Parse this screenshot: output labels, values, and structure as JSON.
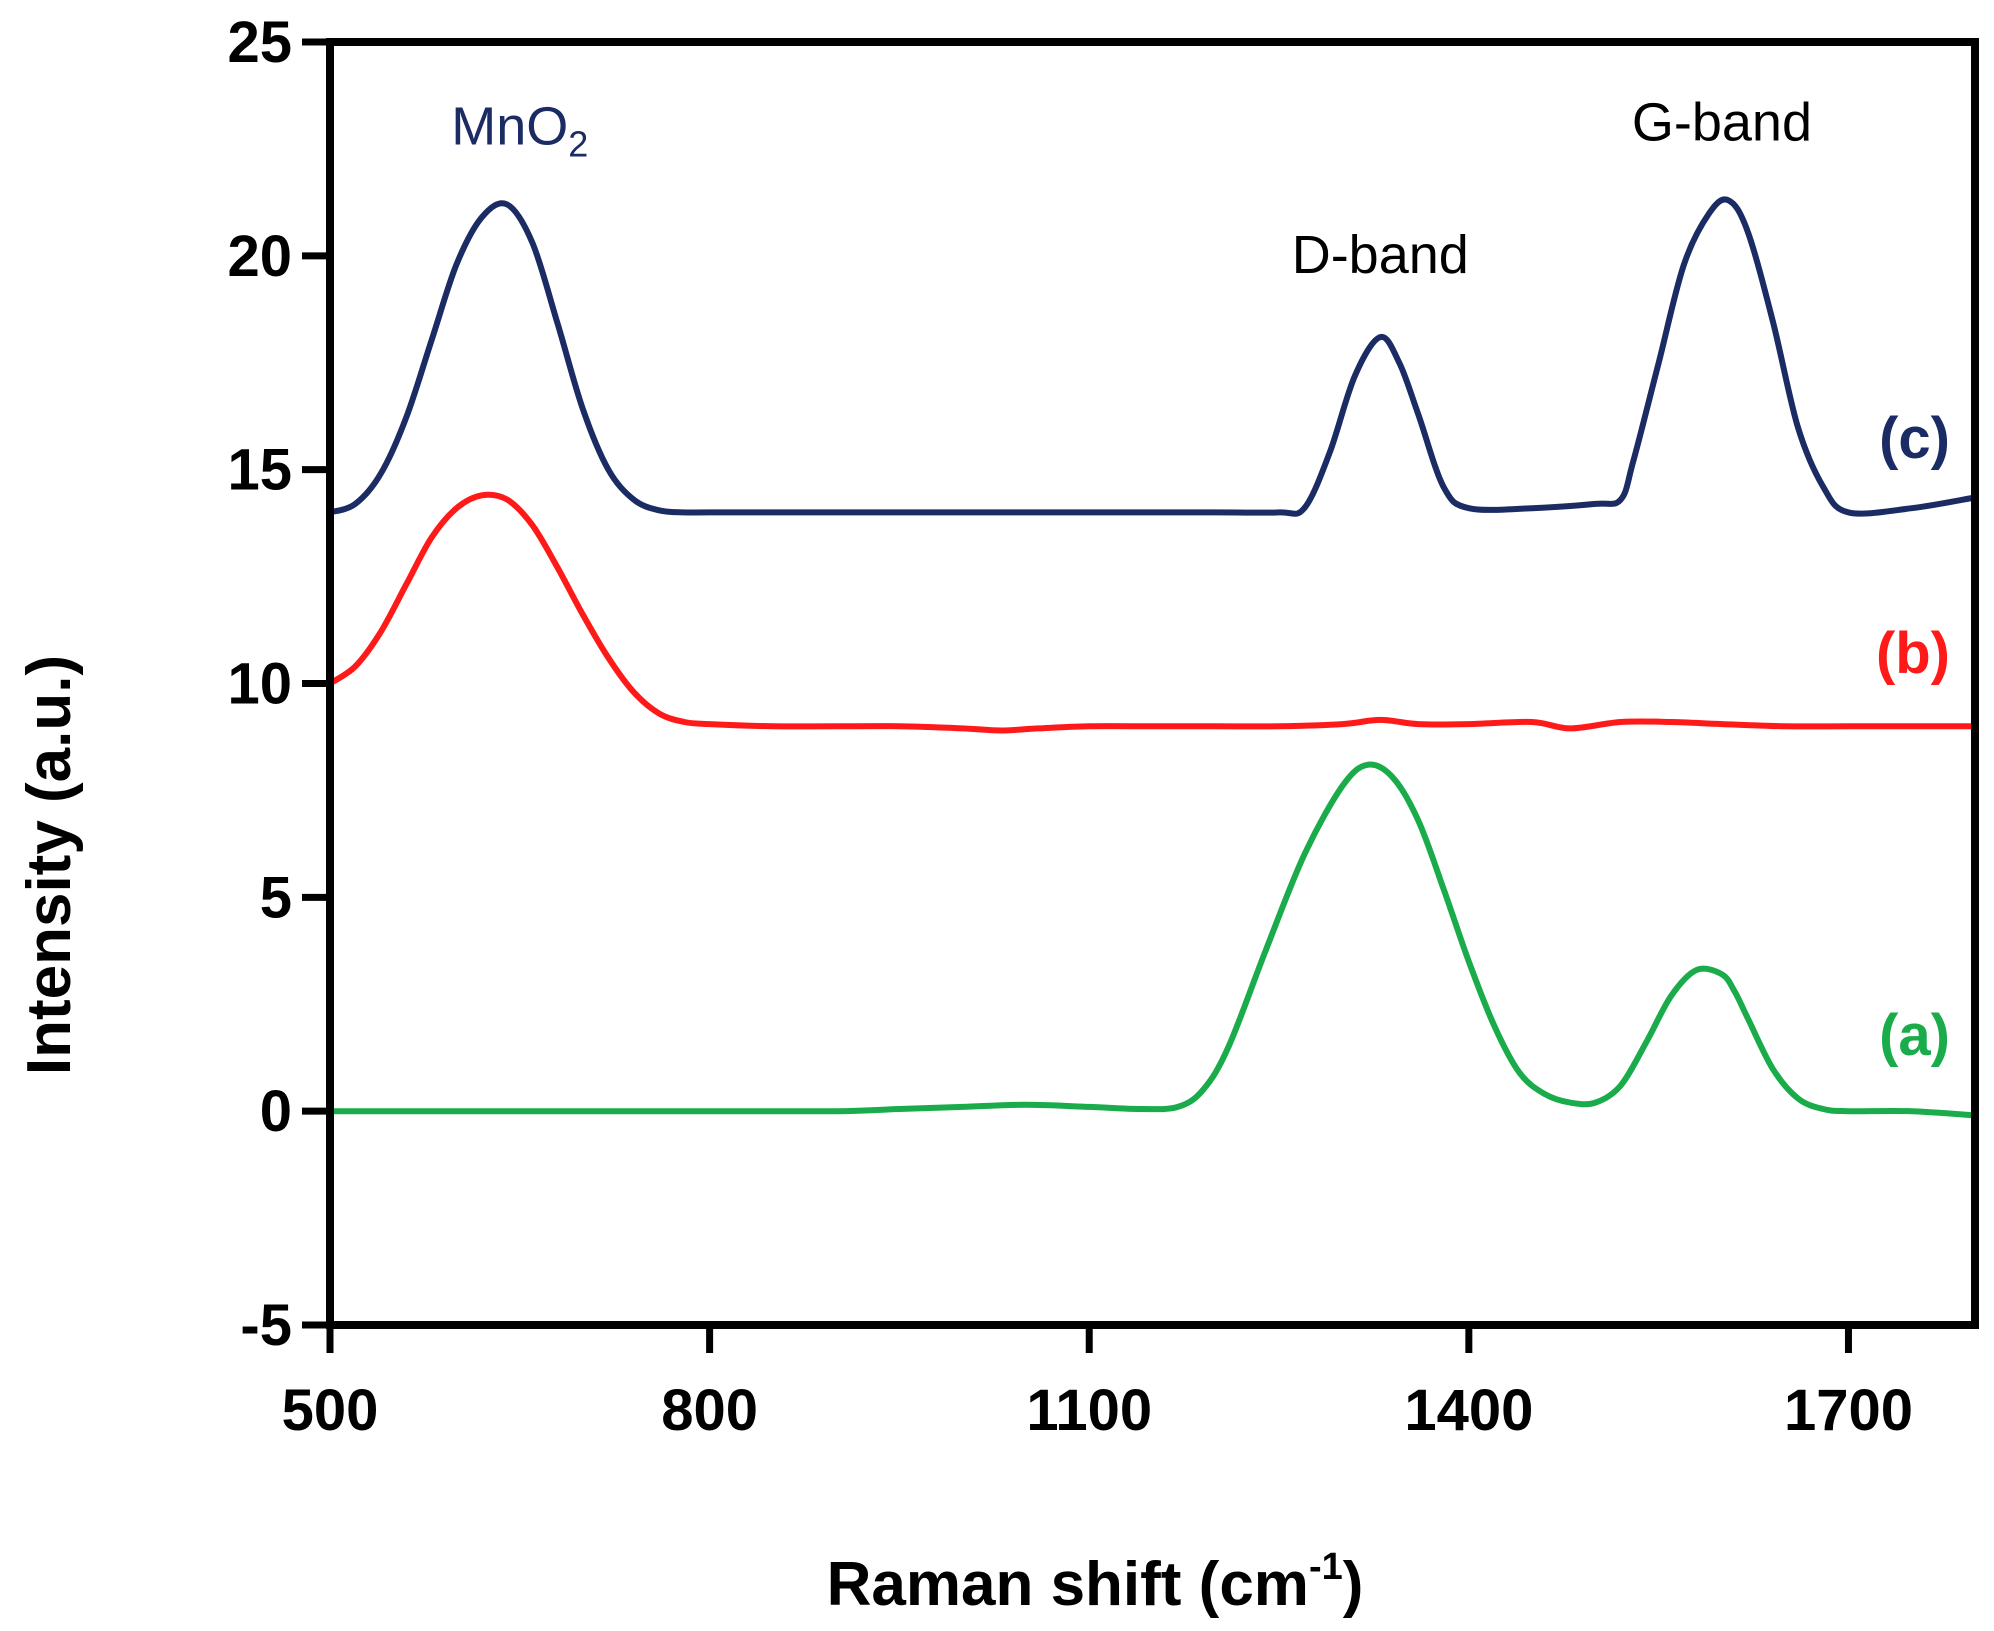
{
  "chart_data": {
    "type": "line",
    "title": "",
    "xlabel": "Raman shift (cm",
    "xlabel_sup": "-1",
    "xlabel_end": ")",
    "ylabel": "Intensity (a.u.)",
    "xlim": [
      500,
      1800
    ],
    "ylim": [
      -5,
      25
    ],
    "xticks": [
      500,
      800,
      1100,
      1400,
      1700
    ],
    "yticks": [
      -5,
      0,
      5,
      10,
      15,
      20,
      25
    ],
    "grid": false,
    "series": [
      {
        "name": "(a)",
        "color": "#1aab4b",
        "x": [
          500,
          600,
          700,
          800,
          900,
          950,
          1000,
          1050,
          1100,
          1140,
          1170,
          1190,
          1210,
          1240,
          1270,
          1300,
          1320,
          1340,
          1360,
          1380,
          1400,
          1420,
          1440,
          1460,
          1480,
          1500,
          1520,
          1540,
          1560,
          1580,
          1600,
          1610,
          1620,
          1640,
          1660,
          1680,
          1700,
          1750,
          1800
        ],
        "values": [
          0,
          0,
          0,
          0,
          0,
          0.05,
          0.1,
          0.15,
          0.1,
          0.05,
          0.1,
          0.5,
          1.5,
          3.8,
          6.0,
          7.6,
          8.1,
          7.8,
          6.8,
          5.2,
          3.5,
          2.0,
          0.9,
          0.4,
          0.2,
          0.2,
          0.6,
          1.6,
          2.7,
          3.3,
          3.2,
          2.8,
          2.2,
          1.0,
          0.3,
          0.05,
          0,
          0,
          -0.1
        ]
      },
      {
        "name": "(b)",
        "color": "#ff1a1a",
        "x": [
          500,
          520,
          540,
          560,
          580,
          600,
          620,
          640,
          660,
          680,
          700,
          720,
          740,
          760,
          780,
          800,
          850,
          900,
          950,
          1000,
          1030,
          1060,
          1100,
          1150,
          1200,
          1250,
          1300,
          1330,
          1360,
          1400,
          1450,
          1480,
          1520,
          1560,
          1600,
          1650,
          1700,
          1750,
          1800
        ],
        "values": [
          10,
          10.4,
          11.2,
          12.3,
          13.4,
          14.1,
          14.4,
          14.3,
          13.7,
          12.7,
          11.6,
          10.6,
          9.8,
          9.3,
          9.1,
          9.05,
          9.0,
          9.0,
          9.0,
          8.95,
          8.9,
          8.95,
          9.0,
          9.0,
          9.0,
          9.0,
          9.05,
          9.15,
          9.05,
          9.05,
          9.1,
          8.95,
          9.1,
          9.1,
          9.05,
          9.0,
          9.0,
          9.0,
          9.0
        ]
      },
      {
        "name": "(c)",
        "color": "#1b2b63",
        "x": [
          500,
          520,
          540,
          560,
          580,
          600,
          620,
          640,
          660,
          680,
          700,
          720,
          740,
          760,
          780,
          800,
          900,
          1000,
          1100,
          1200,
          1250,
          1270,
          1290,
          1310,
          1330,
          1345,
          1360,
          1380,
          1400,
          1450,
          1500,
          1520,
          1530,
          1550,
          1570,
          1590,
          1605,
          1620,
          1640,
          1660,
          1680,
          1700,
          1750,
          1800
        ],
        "values": [
          14,
          14.2,
          14.9,
          16.2,
          18.0,
          19.8,
          20.9,
          21.2,
          20.3,
          18.4,
          16.4,
          15.0,
          14.3,
          14.05,
          14.0,
          14.0,
          14.0,
          14.0,
          14.0,
          14.0,
          14.0,
          14.1,
          15.4,
          17.2,
          18.1,
          17.5,
          16.3,
          14.6,
          14.1,
          14.1,
          14.2,
          14.3,
          15.2,
          17.5,
          19.8,
          21.0,
          21.3,
          20.6,
          18.5,
          16.0,
          14.6,
          14.0,
          14.1,
          14.35
        ]
      }
    ],
    "annotations": [
      {
        "label": "MnO",
        "sub": "2",
        "x": 650,
        "y": 22.6,
        "color": "#1b2b63"
      },
      {
        "label": "D-band",
        "x": 1330,
        "y": 19.6,
        "color": "#000000"
      },
      {
        "label": "G-band",
        "x": 1600,
        "y": 22.7,
        "color": "#000000"
      }
    ]
  }
}
